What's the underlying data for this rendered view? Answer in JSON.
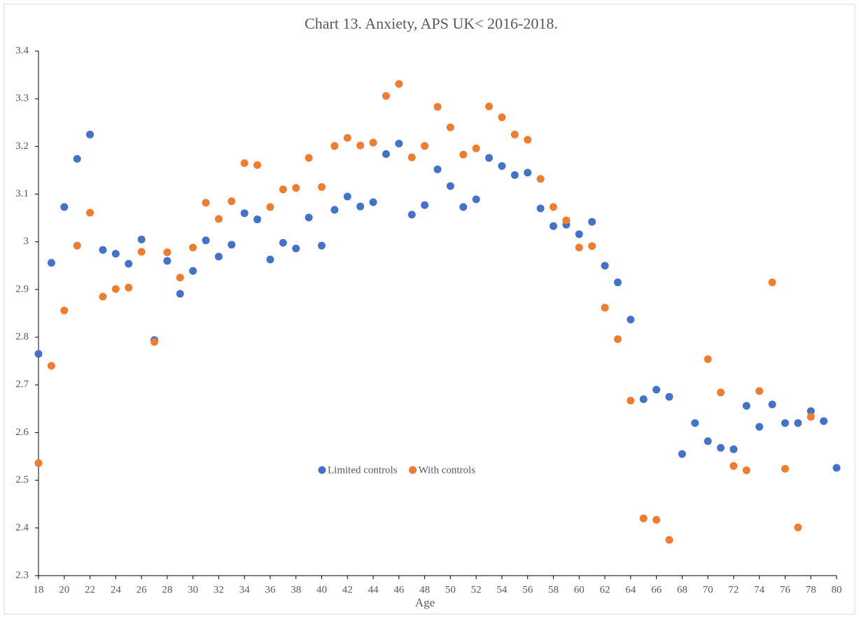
{
  "chart_data": {
    "type": "scatter",
    "title": "Chart 13.  Anxiety, APS UK< 2016-2018.",
    "x_label": "Age",
    "x": [
      18,
      19,
      20,
      21,
      22,
      23,
      24,
      25,
      26,
      27,
      28,
      29,
      30,
      31,
      32,
      33,
      34,
      35,
      36,
      37,
      38,
      39,
      40,
      41,
      42,
      43,
      44,
      45,
      46,
      47,
      48,
      49,
      50,
      51,
      52,
      53,
      54,
      55,
      56,
      57,
      58,
      59,
      60,
      61,
      62,
      63,
      64,
      65,
      66,
      67,
      68,
      69,
      70,
      71,
      72,
      73,
      74,
      75,
      76,
      77,
      78,
      79,
      80
    ],
    "series": [
      {
        "name": "Limited controls",
        "color": "#4472c4",
        "values": [
          2.765,
          2.956,
          3.073,
          3.174,
          3.225,
          2.983,
          2.975,
          2.954,
          3.005,
          2.794,
          2.96,
          2.891,
          2.939,
          3.003,
          2.969,
          2.994,
          3.06,
          3.047,
          2.963,
          2.998,
          2.986,
          3.051,
          2.992,
          3.067,
          3.095,
          3.074,
          3.083,
          3.184,
          3.206,
          3.057,
          3.077,
          3.152,
          3.117,
          3.073,
          3.089,
          3.176,
          3.159,
          3.14,
          3.145,
          3.07,
          3.033,
          3.036,
          3.016,
          3.042,
          2.95,
          2.915,
          2.837,
          2.67,
          2.69,
          2.675,
          2.555,
          2.62,
          2.582,
          2.568,
          2.565,
          2.656,
          2.612,
          2.659,
          2.62,
          2.62,
          2.645,
          2.624,
          2.526
        ]
      },
      {
        "name": "With controls",
        "color": "#ed7d31",
        "values": [
          2.536,
          2.74,
          2.856,
          2.992,
          3.061,
          2.885,
          2.901,
          2.904,
          2.979,
          2.79,
          2.978,
          2.925,
          2.988,
          3.082,
          3.048,
          3.085,
          3.165,
          3.161,
          3.073,
          3.11,
          3.113,
          3.176,
          3.115,
          3.201,
          3.218,
          3.202,
          3.208,
          3.306,
          3.331,
          3.177,
          3.201,
          3.283,
          3.24,
          3.183,
          3.196,
          3.284,
          3.261,
          3.225,
          3.214,
          3.132,
          3.073,
          3.045,
          2.988,
          2.991,
          2.862,
          2.796,
          2.667,
          2.42,
          2.417,
          2.375,
          null,
          null,
          2.754,
          2.684,
          2.53,
          2.521,
          2.687,
          2.915,
          2.524,
          2.401,
          2.633,
          null,
          null
        ]
      }
    ],
    "xlim": [
      18,
      80
    ],
    "xticks": [
      18,
      20,
      22,
      24,
      26,
      28,
      30,
      32,
      34,
      36,
      38,
      40,
      42,
      44,
      46,
      48,
      50,
      52,
      54,
      56,
      58,
      60,
      62,
      64,
      66,
      68,
      70,
      72,
      74,
      76,
      78,
      80
    ],
    "ylim": [
      2.3,
      3.4
    ],
    "yticks": [
      2.3,
      2.4,
      2.5,
      2.6,
      2.7,
      2.8,
      2.9,
      3,
      3.1,
      3.2,
      3.3,
      3.4
    ],
    "grid": false
  }
}
